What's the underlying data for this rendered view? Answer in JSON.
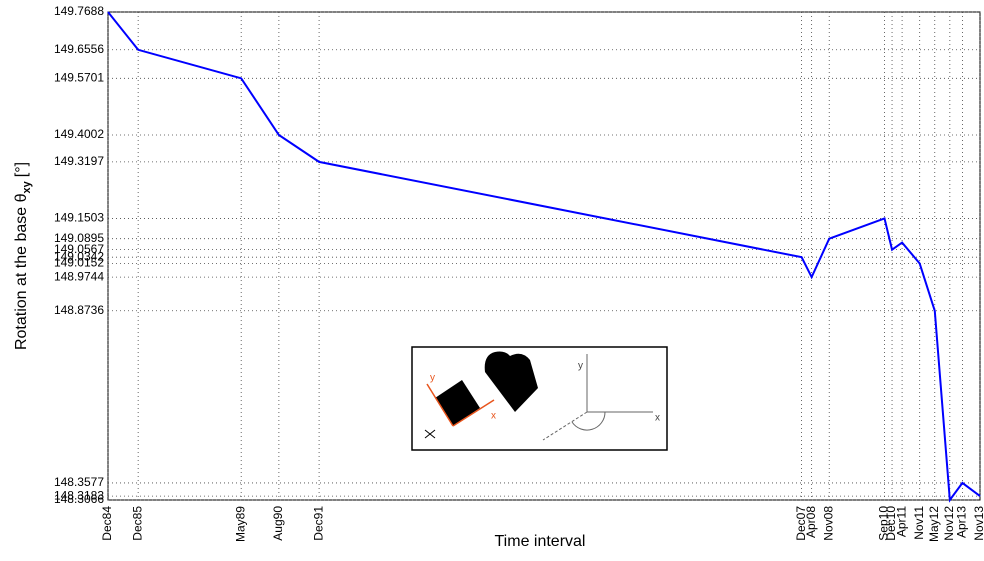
{
  "chart_data": {
    "type": "line",
    "xlabel": "Time interval",
    "ylabel": "Rotation at the base θ",
    "ylabel_sub": "xy",
    "ylabel_unit": "[°]",
    "x": [
      "Dec84",
      "Dec85",
      "May89",
      "Aug90",
      "Dec91",
      "Dec07",
      "Apr08",
      "Nov08",
      "Sep10",
      "Dec10",
      "Apr11",
      "Nov11",
      "May12",
      "Nov12",
      "Apr13",
      "Nov13"
    ],
    "series": [
      {
        "color": "#0000ff",
        "values": [
          149.7688,
          149.6556,
          149.5701,
          149.4002,
          149.3197,
          149.0342,
          148.9744,
          149.0895,
          149.1503,
          149.0567,
          149.0779,
          149.0152,
          148.8736,
          148.3066,
          148.3577,
          148.3183
        ]
      }
    ],
    "ylim": [
      148.3066,
      149.7688
    ],
    "yticks": [
      148.3066,
      148.3183,
      148.3577,
      148.8736,
      148.9744,
      149.0152,
      149.0342,
      149.0567,
      149.0895,
      149.1503,
      149.3197,
      149.4002,
      149.5701,
      149.6556,
      149.7688
    ],
    "grid": true,
    "inset_labels": [
      "y",
      "x",
      "y",
      "x"
    ]
  }
}
